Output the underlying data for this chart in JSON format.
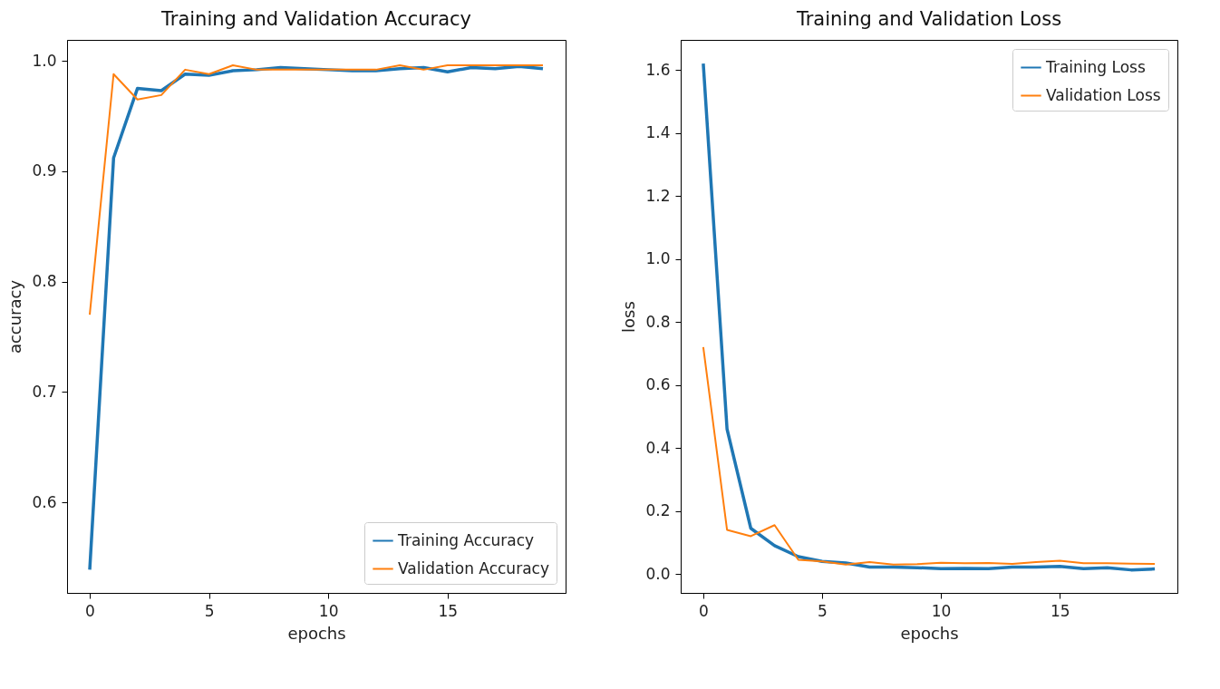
{
  "chart_data": [
    {
      "type": "line",
      "title": "Training and Validation Accuracy",
      "xlabel": "epochs",
      "ylabel": "accuracy",
      "x": [
        0,
        1,
        2,
        3,
        4,
        5,
        6,
        7,
        8,
        9,
        10,
        11,
        12,
        13,
        14,
        15,
        16,
        17,
        18,
        19
      ],
      "series": [
        {
          "name": "Training Accuracy",
          "color": "#1f77b4",
          "values": [
            0.539,
            0.912,
            0.975,
            0.973,
            0.988,
            0.987,
            0.991,
            0.992,
            0.994,
            0.993,
            0.992,
            0.991,
            0.991,
            0.993,
            0.994,
            0.99,
            0.994,
            0.993,
            0.995,
            0.993
          ]
        },
        {
          "name": "Validation Accuracy",
          "color": "#ff7f0e",
          "values": [
            0.77,
            0.988,
            0.965,
            0.969,
            0.992,
            0.988,
            0.996,
            0.992,
            0.992,
            0.992,
            0.992,
            0.992,
            0.992,
            0.996,
            0.992,
            0.996,
            0.996,
            0.996,
            0.996,
            0.996
          ]
        }
      ],
      "xlim": [
        -0.95,
        19.95
      ],
      "xticks": [
        0,
        5,
        10,
        15
      ],
      "ylim": [
        0.518,
        1.019
      ],
      "yticks": [
        {
          "value": 0.6,
          "label": "0.6"
        },
        {
          "value": 0.7,
          "label": "0.7"
        },
        {
          "value": 0.8,
          "label": "0.8"
        },
        {
          "value": 0.9,
          "label": "0.9"
        },
        {
          "value": 1.0,
          "label": "1.0"
        }
      ],
      "legend": "bottom right",
      "grid": false
    },
    {
      "type": "line",
      "title": "Training and Validation Loss",
      "xlabel": "epochs",
      "ylabel": "loss",
      "x": [
        0,
        1,
        2,
        3,
        4,
        5,
        6,
        7,
        8,
        9,
        10,
        11,
        12,
        13,
        14,
        15,
        16,
        17,
        18,
        19
      ],
      "series": [
        {
          "name": "Training Loss",
          "color": "#1f77b4",
          "values": [
            1.62,
            0.46,
            0.145,
            0.09,
            0.055,
            0.04,
            0.035,
            0.022,
            0.022,
            0.02,
            0.017,
            0.018,
            0.017,
            0.022,
            0.022,
            0.024,
            0.017,
            0.02,
            0.013,
            0.016
          ]
        },
        {
          "name": "Validation Loss",
          "color": "#ff7f0e",
          "values": [
            0.72,
            0.14,
            0.12,
            0.155,
            0.045,
            0.04,
            0.03,
            0.038,
            0.03,
            0.031,
            0.036,
            0.034,
            0.035,
            0.032,
            0.038,
            0.042,
            0.034,
            0.034,
            0.033,
            0.032
          ]
        }
      ],
      "xlim": [
        -0.95,
        19.95
      ],
      "xticks": [
        0,
        5,
        10,
        15
      ],
      "ylim": [
        -0.06,
        1.695
      ],
      "yticks": [
        {
          "value": 0,
          "label": "0.0"
        },
        {
          "value": 0.2,
          "label": "0.2"
        },
        {
          "value": 0.4,
          "label": "0.4"
        },
        {
          "value": 0.6,
          "label": "0.6"
        },
        {
          "value": 0.8,
          "label": "0.8"
        },
        {
          "value": 1.0,
          "label": "1.0"
        },
        {
          "value": 1.2,
          "label": "1.2"
        },
        {
          "value": 1.4,
          "label": "1.4"
        },
        {
          "value": 1.6,
          "label": "1.6"
        }
      ],
      "legend": "top right",
      "grid": false
    }
  ]
}
